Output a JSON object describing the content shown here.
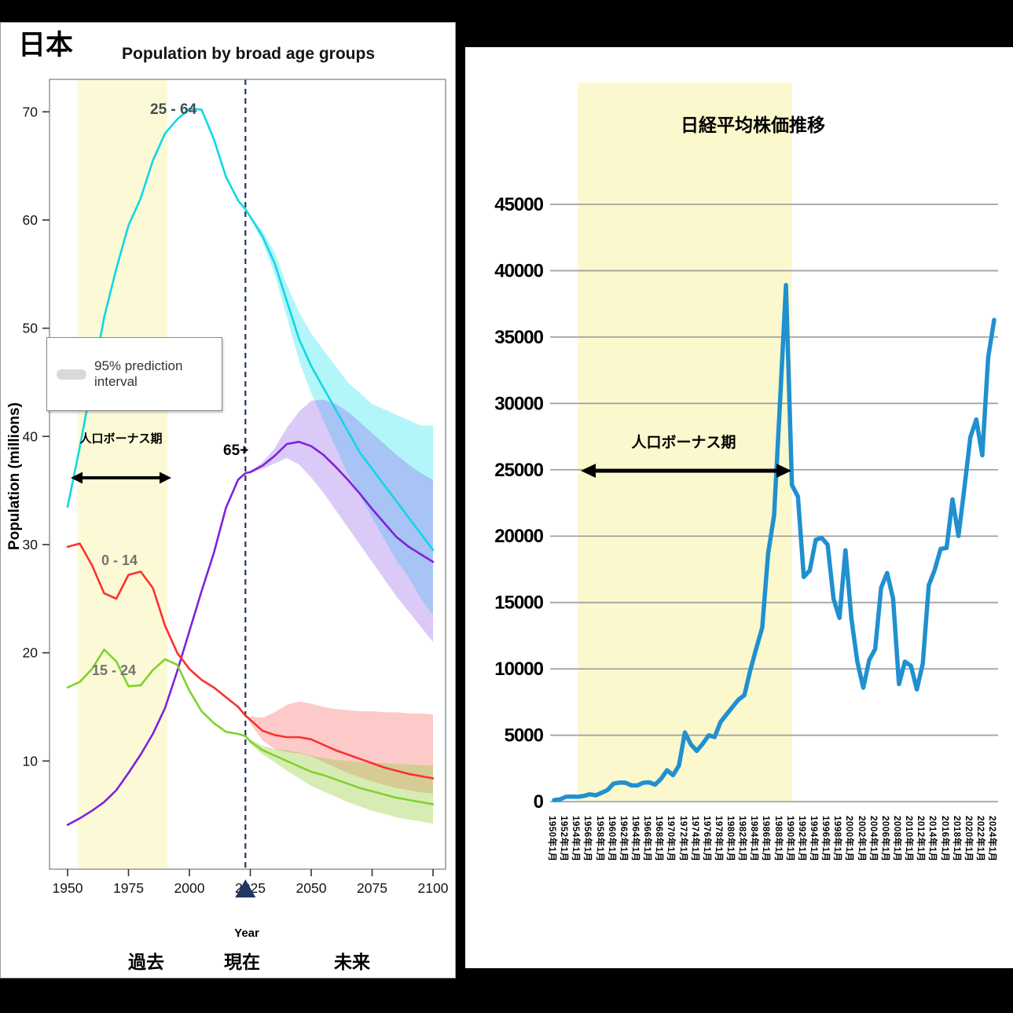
{
  "page": {
    "background": "#000000"
  },
  "left_panel": {
    "country_label": "日本",
    "title": "Population by broad age groups",
    "ylabel": "Population (millions)",
    "xlabel": "Year",
    "legend_label": "95% prediction interval",
    "bonus_label": "人口ボーナス期",
    "timeline": {
      "past": "過去",
      "present": "現在",
      "future": "未来"
    }
  },
  "right_panel": {
    "title": "日経平均株価推移",
    "bonus_label": "人口ボーナス期"
  },
  "chart_data": [
    {
      "id": "population-by-age",
      "type": "line",
      "title": "Population by broad age groups",
      "xlabel": "Year",
      "ylabel": "Population (millions)",
      "xlim": [
        1946,
        2104
      ],
      "ylim": [
        0,
        73
      ],
      "xticks": [
        1950,
        1975,
        2000,
        2025,
        2050,
        2075,
        2100
      ],
      "yticks": [
        10,
        20,
        30,
        40,
        50,
        60,
        70
      ],
      "grid": false,
      "legend": {
        "label": "95% prediction interval",
        "position": "upper-left",
        "swatch_color": "#d9d9d9"
      },
      "highlight_band": {
        "label": "人口ボーナス期",
        "from": 1954,
        "to": 1991,
        "color": "#fcfad6"
      },
      "present_line": {
        "year": 2023,
        "color": "#1f3864",
        "style": "dashed"
      },
      "x": [
        1950,
        1955,
        1960,
        1965,
        1970,
        1975,
        1980,
        1985,
        1990,
        1995,
        2000,
        2005,
        2010,
        2015,
        2020,
        2023,
        2025,
        2030,
        2035,
        2040,
        2045,
        2050,
        2055,
        2060,
        2065,
        2070,
        2075,
        2080,
        2085,
        2090,
        2095,
        2100
      ],
      "band_x": [
        2023,
        2025,
        2030,
        2035,
        2040,
        2045,
        2050,
        2055,
        2060,
        2065,
        2070,
        2075,
        2080,
        2085,
        2090,
        2095,
        2100
      ],
      "series": [
        {
          "name": "25 - 64",
          "color": "#0fd7e8",
          "values": [
            33.5,
            39,
            45,
            51,
            55.5,
            59.5,
            62,
            65.5,
            68,
            69.3,
            70.3,
            70.2,
            67.5,
            64,
            61.8,
            61,
            60.3,
            58.5,
            56,
            52.5,
            49,
            46.5,
            44.5,
            42.5,
            40.5,
            38.5,
            37,
            35.5,
            34,
            32.5,
            31,
            29.5
          ],
          "band_color": "rgba(0,225,240,0.30)",
          "band_lower": [
            61,
            60.2,
            58,
            55,
            51,
            47,
            44,
            41.5,
            39,
            36.5,
            34.5,
            32.5,
            30.5,
            28.5,
            27,
            25,
            23.5
          ],
          "band_upper": [
            61,
            60.4,
            59,
            57,
            54,
            51.5,
            49.5,
            48,
            46.5,
            45,
            44,
            43,
            42.5,
            42,
            41.5,
            41,
            41
          ]
        },
        {
          "name": "65+",
          "color": "#7e22dc",
          "values": [
            4.1,
            4.7,
            5.4,
            6.2,
            7.3,
            8.9,
            10.6,
            12.5,
            14.9,
            18.3,
            22,
            25.7,
            29.2,
            33.4,
            36,
            36.6,
            36.7,
            37.3,
            38.2,
            39.3,
            39.5,
            39.1,
            38.3,
            37.2,
            36,
            34.7,
            33.3,
            32,
            30.7,
            29.8,
            29.1,
            28.4
          ],
          "band_color": "rgba(145,95,235,0.33)",
          "band_lower": [
            36.6,
            36.6,
            37,
            37.5,
            38,
            37.4,
            36.2,
            34.8,
            33.2,
            31.6,
            30,
            28.4,
            26.8,
            25.2,
            23.8,
            22.4,
            21
          ],
          "band_upper": [
            36.6,
            36.8,
            37.6,
            38.9,
            40.8,
            42.3,
            43.3,
            43.4,
            43,
            42.3,
            41.3,
            40.3,
            39.3,
            38.3,
            37.4,
            36.6,
            36
          ]
        },
        {
          "name": "0 - 14",
          "color": "#fb3030",
          "values": [
            29.8,
            30.1,
            28.1,
            25.5,
            25,
            27.2,
            27.5,
            26,
            22.5,
            20,
            18.5,
            17.5,
            16.8,
            15.9,
            15,
            14.2,
            13.8,
            12.8,
            12.4,
            12.2,
            12.2,
            12,
            11.5,
            11,
            10.6,
            10.2,
            9.8,
            9.4,
            9.1,
            8.8,
            8.6,
            8.4
          ],
          "band_color": "rgba(250,80,80,0.30)",
          "band_lower": [
            14.2,
            13.5,
            11.9,
            11.1,
            10.8,
            10.7,
            10.4,
            9.9,
            9.4,
            8.9,
            8.5,
            8.1,
            7.8,
            7.5,
            7.3,
            7.1,
            7
          ],
          "band_upper": [
            14.2,
            14.1,
            14,
            14.5,
            15.2,
            15.5,
            15.3,
            15,
            14.8,
            14.7,
            14.6,
            14.6,
            14.5,
            14.5,
            14.4,
            14.4,
            14.3
          ]
        },
        {
          "name": "15 - 24",
          "color": "#7ed32c",
          "values": [
            16.8,
            17.3,
            18.5,
            20.3,
            19.2,
            16.9,
            17,
            18.4,
            19.4,
            18.9,
            16.5,
            14.6,
            13.5,
            12.7,
            12.5,
            12.3,
            11.8,
            11,
            10.5,
            10,
            9.5,
            9,
            8.7,
            8.3,
            7.9,
            7.5,
            7.2,
            6.9,
            6.6,
            6.4,
            6.2,
            6
          ],
          "band_color": "rgba(150,205,60,0.38)",
          "band_lower": [
            12.3,
            11.6,
            10.6,
            9.9,
            9.1,
            8.4,
            7.7,
            7.2,
            6.7,
            6.2,
            5.8,
            5.4,
            5.1,
            4.8,
            4.6,
            4.4,
            4.2
          ],
          "band_upper": [
            12.3,
            12,
            11.4,
            11.1,
            11,
            10.8,
            10.5,
            10.3,
            10.1,
            10,
            9.9,
            9.8,
            9.8,
            9.7,
            9.7,
            9.6,
            9.6
          ]
        }
      ]
    },
    {
      "id": "nikkei-average",
      "type": "line",
      "title": "日経平均株価推移",
      "ylim": [
        0,
        45000
      ],
      "yticks": [
        0,
        5000,
        10000,
        15000,
        20000,
        25000,
        30000,
        35000,
        40000,
        45000
      ],
      "grid": true,
      "line_color": "#2090cf",
      "highlight_band": {
        "label": "人口ボーナス期",
        "from": 1954,
        "to": 1990,
        "color": "#fbf8cd"
      },
      "x_start": 1950,
      "x_interval": 1,
      "values": [
        110,
        170,
        360,
        380,
        360,
        425,
        550,
        475,
        665,
        875,
        1355,
        1430,
        1420,
        1225,
        1215,
        1420,
        1450,
        1280,
        1715,
        2360,
        1990,
        2710,
        5210,
        4310,
        3820,
        4360,
        4990,
        4865,
        6000,
        6570,
        7115,
        7680,
        8015,
        9895,
        11540,
        13110,
        18700,
        21565,
        30160,
        38915,
        23850,
        22985,
        16925,
        17415,
        19725,
        19870,
        19360,
        15260,
        13840,
        18935,
        13785,
        10545,
        8580,
        10675,
        11490,
        16110,
        17225,
        15305,
        8860,
        10545,
        10230,
        8455,
        10395,
        16290,
        17450,
        19035,
        19115,
        22765,
        20015,
        23655,
        27445,
        28790,
        26095,
        33465,
        36290
      ],
      "xtick_labels": [
        "1950年1月",
        "1952年1月",
        "1954年1月",
        "1956年1月",
        "1958年1月",
        "1960年1月",
        "1962年1月",
        "1964年1月",
        "1966年1月",
        "1968年1月",
        "1970年1月",
        "1972年1月",
        "1974年1月",
        "1976年1月",
        "1978年1月",
        "1980年1月",
        "1982年1月",
        "1984年1月",
        "1986年1月",
        "1988年1月",
        "1990年1月",
        "1992年1月",
        "1994年1月",
        "1996年1月",
        "1998年1月",
        "2000年1月",
        "2002年1月",
        "2004年1月",
        "2006年1月",
        "2008年1月",
        "2010年1月",
        "2012年1月",
        "2014年1月",
        "2016年1月",
        "2018年1月",
        "2020年1月",
        "2022年1月",
        "2024年1月"
      ]
    }
  ]
}
